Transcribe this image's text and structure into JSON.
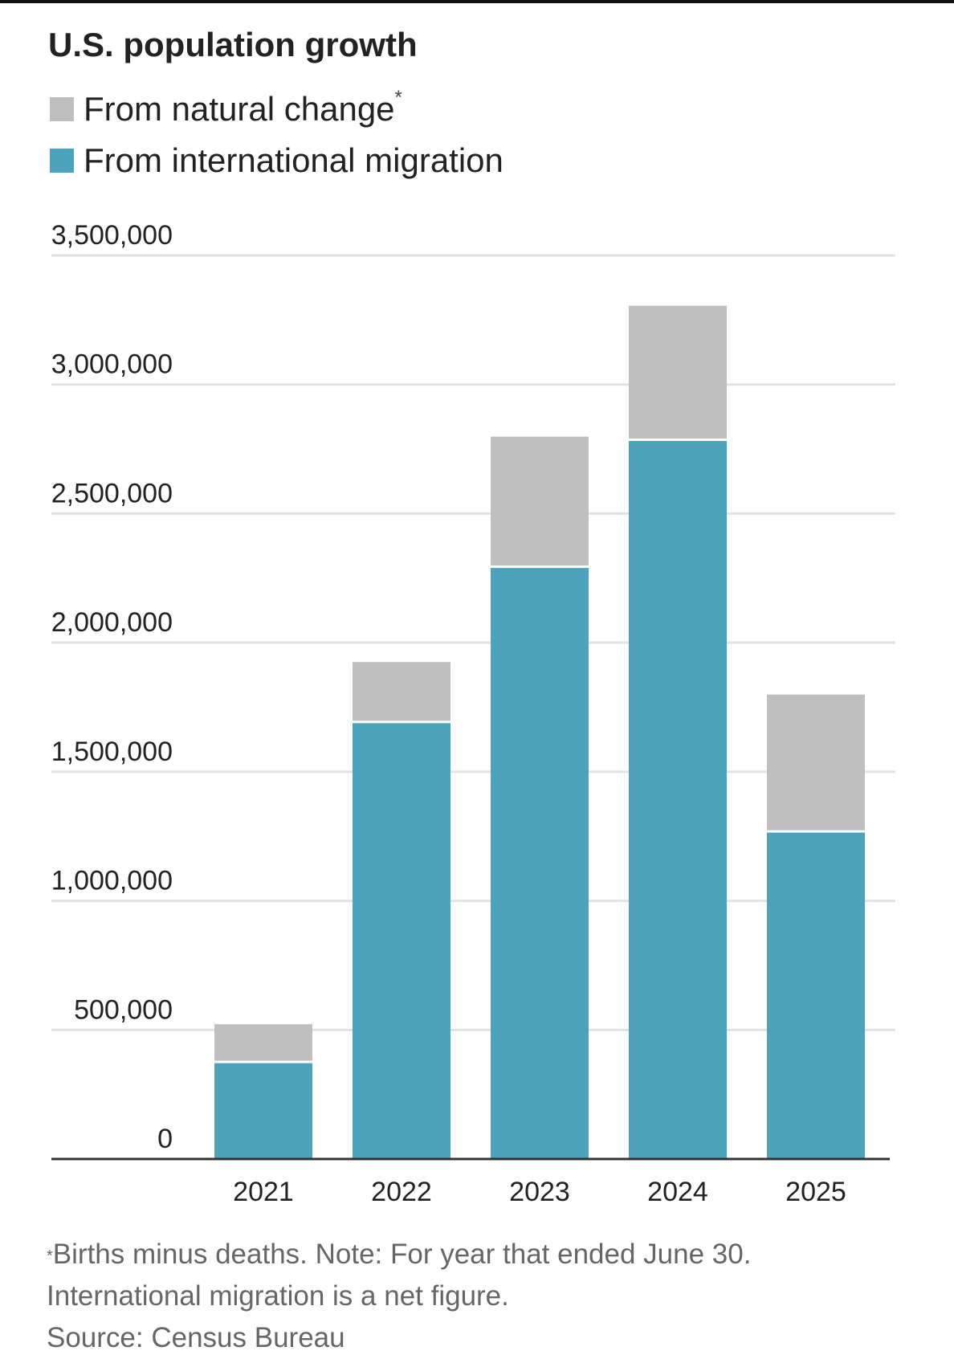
{
  "title": "U.S. population growth",
  "legend": [
    {
      "label": "From natural change",
      "marker": "*",
      "color": "#bfbfbf"
    },
    {
      "label": "From international migration",
      "marker": "",
      "color": "#4ba3bc"
    }
  ],
  "chart_data": {
    "type": "bar",
    "stacked": true,
    "categories": [
      "2021",
      "2022",
      "2023",
      "2024",
      "2025"
    ],
    "series": [
      {
        "name": "From international migration",
        "color": "#4ba3bc",
        "values": [
          376000,
          1693000,
          2294000,
          2786000,
          1269000
        ]
      },
      {
        "name": "From natural change",
        "color": "#bfbfbf",
        "values": [
          146000,
          232000,
          504000,
          519000,
          530000
        ]
      }
    ],
    "ylim": [
      0,
      3500000
    ],
    "yticks": [
      0,
      500000,
      1000000,
      1500000,
      2000000,
      2500000,
      3000000,
      3500000
    ],
    "ytick_labels": [
      "0",
      "500,000",
      "1,000,000",
      "1,500,000",
      "2,000,000",
      "2,500,000",
      "3,000,000",
      "3,500,000"
    ],
    "grid": true,
    "legend_position": "top-left",
    "xlabel": "",
    "ylabel": ""
  },
  "footnote": {
    "marker": "*",
    "lines": [
      "Births minus deaths. Note: For year that ended June 30.",
      "International migration is a net figure.",
      "Source: Census Bureau"
    ]
  }
}
